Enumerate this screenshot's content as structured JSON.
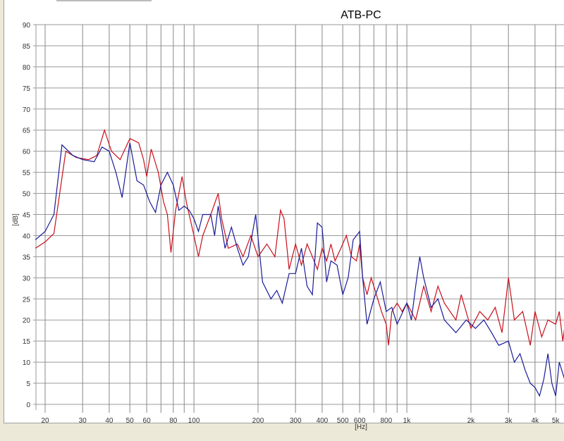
{
  "chart_data": {
    "type": "line",
    "title": "ATB-PC",
    "xlabel": "[Hz]",
    "ylabel": "[dB]",
    "xscale": "log",
    "xlim": [
      18,
      5500
    ],
    "ylim": [
      0,
      90
    ],
    "grid": true,
    "y_ticks": [
      0,
      5,
      10,
      15,
      20,
      25,
      30,
      35,
      40,
      45,
      50,
      55,
      60,
      65,
      70,
      75,
      80,
      85,
      90
    ],
    "x_gridlines": [
      20,
      30,
      40,
      50,
      60,
      70,
      80,
      90,
      100,
      200,
      300,
      400,
      500,
      600,
      700,
      800,
      900,
      1000,
      2000,
      3000,
      4000,
      5000
    ],
    "x_ticks": [
      {
        "value": 20,
        "label": "20"
      },
      {
        "value": 30,
        "label": "30"
      },
      {
        "value": 40,
        "label": "40"
      },
      {
        "value": 50,
        "label": "50"
      },
      {
        "value": 60,
        "label": "60"
      },
      {
        "value": 80,
        "label": "80"
      },
      {
        "value": 100,
        "label": "100"
      },
      {
        "value": 200,
        "label": "200"
      },
      {
        "value": 300,
        "label": "300"
      },
      {
        "value": 400,
        "label": "400"
      },
      {
        "value": 500,
        "label": "500"
      },
      {
        "value": 600,
        "label": "600"
      },
      {
        "value": 800,
        "label": "800"
      },
      {
        "value": 1000,
        "label": "1k"
      },
      {
        "value": 2000,
        "label": "2k"
      },
      {
        "value": 3000,
        "label": "3k"
      },
      {
        "value": 4000,
        "label": "4k"
      },
      {
        "value": 5000,
        "label": "5k"
      }
    ],
    "series": [
      {
        "name": "red",
        "color": "#c8101a",
        "points": [
          [
            18,
            37
          ],
          [
            20,
            38.5
          ],
          [
            22,
            40.5
          ],
          [
            25,
            60
          ],
          [
            28,
            58.5
          ],
          [
            32,
            58
          ],
          [
            35,
            59
          ],
          [
            38,
            65
          ],
          [
            41,
            60
          ],
          [
            45,
            58
          ],
          [
            50,
            63
          ],
          [
            55,
            62
          ],
          [
            58,
            58
          ],
          [
            60,
            54
          ],
          [
            63,
            60.5
          ],
          [
            68,
            55
          ],
          [
            72,
            48
          ],
          [
            75,
            45
          ],
          [
            78,
            36
          ],
          [
            82,
            46
          ],
          [
            88,
            54
          ],
          [
            92,
            48
          ],
          [
            100,
            40
          ],
          [
            105,
            35
          ],
          [
            110,
            40
          ],
          [
            120,
            45
          ],
          [
            130,
            50
          ],
          [
            135,
            44
          ],
          [
            145,
            37
          ],
          [
            160,
            38
          ],
          [
            170,
            35
          ],
          [
            185,
            40
          ],
          [
            200,
            35
          ],
          [
            220,
            38
          ],
          [
            240,
            35
          ],
          [
            255,
            46
          ],
          [
            265,
            44
          ],
          [
            280,
            32
          ],
          [
            300,
            38
          ],
          [
            320,
            33
          ],
          [
            340,
            38
          ],
          [
            360,
            35
          ],
          [
            380,
            32
          ],
          [
            400,
            37
          ],
          [
            420,
            34
          ],
          [
            440,
            38
          ],
          [
            460,
            34
          ],
          [
            490,
            37
          ],
          [
            520,
            40
          ],
          [
            550,
            35
          ],
          [
            580,
            34
          ],
          [
            600,
            38
          ],
          [
            620,
            30
          ],
          [
            650,
            26
          ],
          [
            680,
            30
          ],
          [
            720,
            26
          ],
          [
            760,
            22
          ],
          [
            800,
            19
          ],
          [
            820,
            14
          ],
          [
            850,
            22
          ],
          [
            900,
            24
          ],
          [
            950,
            22
          ],
          [
            1000,
            24
          ],
          [
            1100,
            20
          ],
          [
            1200,
            28
          ],
          [
            1300,
            22
          ],
          [
            1400,
            28
          ],
          [
            1500,
            24
          ],
          [
            1700,
            20
          ],
          [
            1800,
            26
          ],
          [
            2000,
            18
          ],
          [
            2200,
            22
          ],
          [
            2400,
            20
          ],
          [
            2600,
            23
          ],
          [
            2800,
            17
          ],
          [
            3000,
            30
          ],
          [
            3200,
            20
          ],
          [
            3500,
            22
          ],
          [
            3800,
            14
          ],
          [
            4000,
            22
          ],
          [
            4300,
            16
          ],
          [
            4600,
            20
          ],
          [
            5000,
            19
          ],
          [
            5200,
            22
          ],
          [
            5400,
            15
          ],
          [
            5500,
            18
          ]
        ]
      },
      {
        "name": "blue",
        "color": "#1a1a9a",
        "points": [
          [
            18,
            39
          ],
          [
            20,
            41
          ],
          [
            22,
            45
          ],
          [
            24,
            61.5
          ],
          [
            27,
            59
          ],
          [
            30,
            58
          ],
          [
            34,
            57.5
          ],
          [
            37,
            61
          ],
          [
            40,
            60
          ],
          [
            43,
            55
          ],
          [
            46,
            49
          ],
          [
            50,
            62
          ],
          [
            54,
            53
          ],
          [
            58,
            52
          ],
          [
            62,
            48
          ],
          [
            66,
            45.5
          ],
          [
            70,
            52
          ],
          [
            75,
            55
          ],
          [
            80,
            52
          ],
          [
            85,
            46
          ],
          [
            90,
            47
          ],
          [
            95,
            46
          ],
          [
            100,
            44
          ],
          [
            105,
            41
          ],
          [
            110,
            45
          ],
          [
            120,
            45
          ],
          [
            125,
            40
          ],
          [
            130,
            47
          ],
          [
            140,
            37
          ],
          [
            150,
            42
          ],
          [
            160,
            37
          ],
          [
            170,
            33
          ],
          [
            180,
            35
          ],
          [
            195,
            45
          ],
          [
            210,
            29
          ],
          [
            230,
            25
          ],
          [
            245,
            27
          ],
          [
            260,
            24
          ],
          [
            280,
            31
          ],
          [
            300,
            31
          ],
          [
            320,
            37
          ],
          [
            340,
            28
          ],
          [
            360,
            26
          ],
          [
            380,
            43
          ],
          [
            400,
            42
          ],
          [
            420,
            29
          ],
          [
            440,
            34
          ],
          [
            470,
            33
          ],
          [
            500,
            26
          ],
          [
            530,
            30
          ],
          [
            560,
            39
          ],
          [
            600,
            41
          ],
          [
            620,
            30
          ],
          [
            650,
            19
          ],
          [
            700,
            25
          ],
          [
            750,
            29
          ],
          [
            800,
            22
          ],
          [
            850,
            23
          ],
          [
            900,
            19
          ],
          [
            1000,
            24
          ],
          [
            1050,
            20
          ],
          [
            1100,
            28
          ],
          [
            1150,
            35
          ],
          [
            1200,
            30
          ],
          [
            1300,
            23
          ],
          [
            1400,
            25
          ],
          [
            1500,
            20
          ],
          [
            1700,
            17
          ],
          [
            1900,
            20
          ],
          [
            2100,
            18
          ],
          [
            2300,
            20
          ],
          [
            2500,
            17
          ],
          [
            2700,
            14
          ],
          [
            3000,
            15
          ],
          [
            3200,
            10
          ],
          [
            3400,
            12
          ],
          [
            3600,
            8
          ],
          [
            3800,
            5
          ],
          [
            4000,
            4
          ],
          [
            4200,
            2
          ],
          [
            4400,
            6
          ],
          [
            4600,
            12
          ],
          [
            4800,
            5
          ],
          [
            5000,
            2
          ],
          [
            5200,
            10
          ],
          [
            5500,
            6
          ]
        ]
      }
    ]
  }
}
